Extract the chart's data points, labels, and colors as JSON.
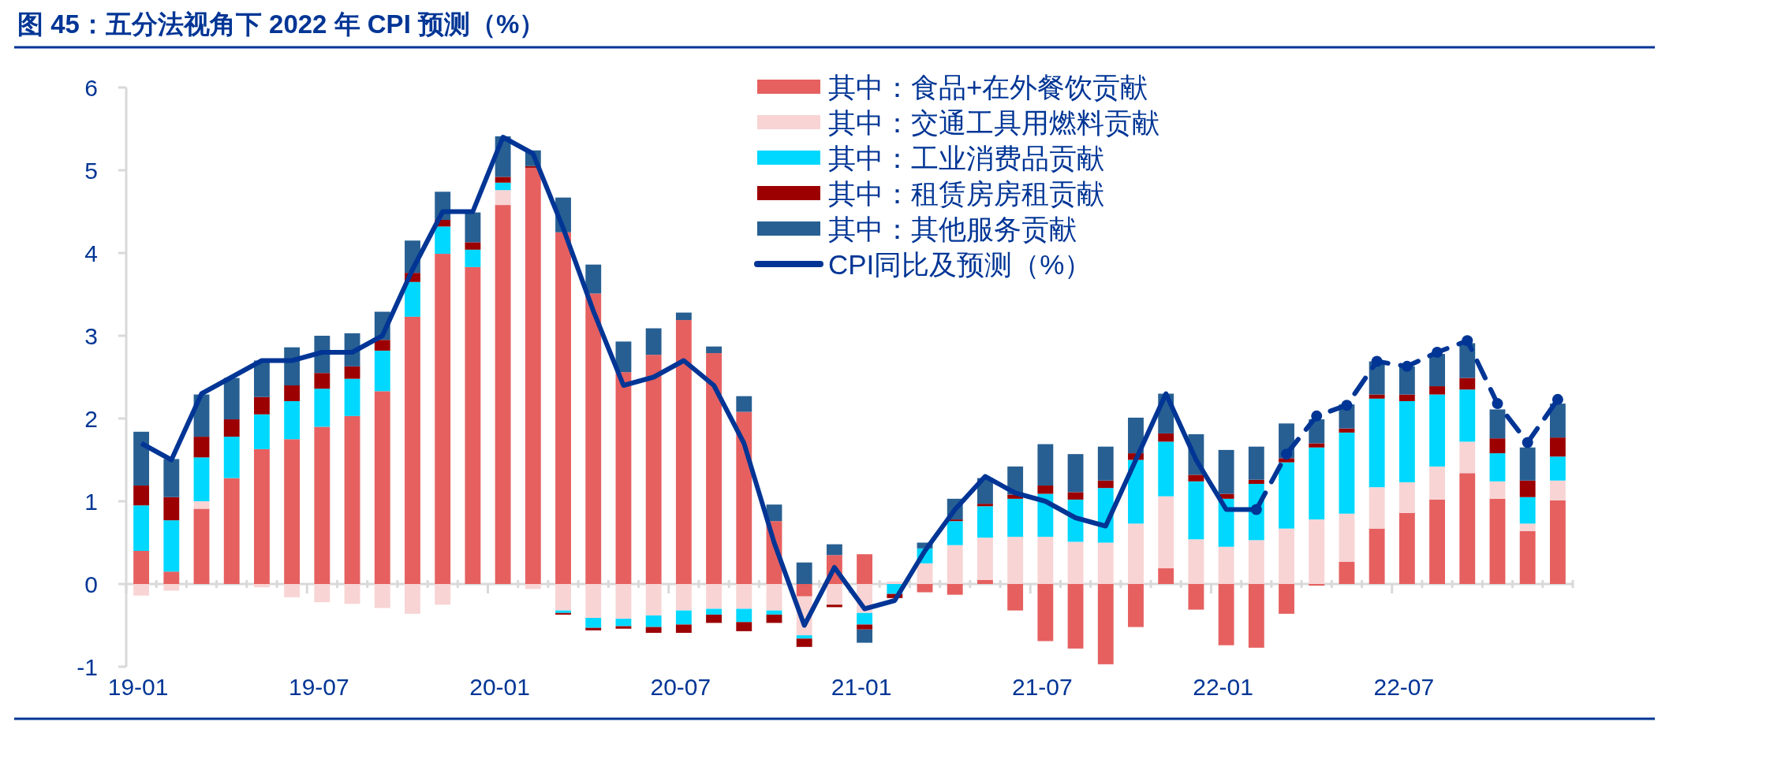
{
  "chart_data": {
    "type": "bar",
    "stacked": true,
    "title": "图 45：五分法视角下 2022 年 CPI 预测（%）",
    "legend": "top",
    "ylim": [
      -1,
      6
    ],
    "yticks": [
      -1,
      0,
      1,
      2,
      3,
      4,
      5,
      6
    ],
    "categories": [
      "19-01",
      null,
      null,
      null,
      null,
      null,
      "19-07",
      null,
      null,
      null,
      null,
      null,
      "20-01",
      null,
      null,
      null,
      null,
      null,
      "20-07",
      null,
      null,
      null,
      null,
      null,
      "21-01",
      null,
      null,
      null,
      null,
      null,
      "21-07",
      null,
      null,
      null,
      null,
      null,
      "22-01",
      null,
      null,
      null,
      null,
      null,
      "22-07",
      null,
      null,
      null,
      null,
      null
    ],
    "series": [
      {
        "name": "其中：食品+在外餐饮贡献",
        "color": "#e66060",
        "values": [
          0.4,
          0.15,
          0.91,
          1.28,
          1.63,
          1.75,
          1.9,
          2.03,
          2.33,
          3.23,
          3.99,
          3.83,
          4.58,
          5.03,
          4.25,
          3.51,
          2.56,
          2.77,
          3.19,
          2.79,
          2.08,
          0.76,
          -0.15,
          0.35,
          0.36,
          0,
          -0.1,
          -0.13,
          0.05,
          -0.32,
          -0.69,
          -0.78,
          -0.97,
          -0.52,
          0.19,
          -0.31,
          -0.74,
          -0.77,
          -0.36,
          -0.02,
          0.27,
          0.67,
          0.86,
          1.02,
          1.34,
          1.03,
          0.64,
          1.01
        ]
      },
      {
        "name": "其中：交通工具用燃料贡献",
        "color": "#f8d4d4",
        "values": [
          -0.14,
          -0.08,
          0.09,
          0,
          -0.04,
          -0.16,
          -0.22,
          -0.24,
          -0.29,
          -0.36,
          -0.25,
          0,
          0.18,
          -0.06,
          -0.32,
          -0.41,
          -0.42,
          -0.38,
          -0.32,
          -0.3,
          -0.3,
          -0.32,
          -0.47,
          -0.25,
          -0.35,
          0.03,
          0.25,
          0.47,
          0.51,
          0.57,
          0.57,
          0.51,
          0.5,
          0.73,
          0.87,
          0.54,
          0.45,
          0.53,
          0.67,
          0.78,
          0.58,
          0.5,
          0.37,
          0.4,
          0.38,
          0.21,
          0.09,
          0.24
        ]
      },
      {
        "name": "其中：工业消费品贡献",
        "color": "#00d8ff",
        "values": [
          0.55,
          0.62,
          0.53,
          0.5,
          0.42,
          0.46,
          0.46,
          0.45,
          0.49,
          0.42,
          0.33,
          0.21,
          0.09,
          0,
          -0.03,
          -0.12,
          -0.09,
          -0.14,
          -0.17,
          -0.07,
          -0.16,
          -0.05,
          -0.04,
          0,
          -0.14,
          -0.12,
          0.18,
          0.29,
          0.38,
          0.46,
          0.52,
          0.51,
          0.66,
          0.77,
          0.66,
          0.7,
          0.58,
          0.68,
          0.8,
          0.87,
          0.98,
          1.07,
          0.98,
          0.87,
          0.63,
          0.34,
          0.32,
          0.29
        ]
      },
      {
        "name": "其中：租赁房房租贡献",
        "color": "#9c0000",
        "values": [
          0.24,
          0.28,
          0.25,
          0.21,
          0.21,
          0.19,
          0.19,
          0.15,
          0.13,
          0.11,
          0.08,
          0.09,
          0.07,
          0.02,
          -0.02,
          -0.03,
          -0.03,
          -0.07,
          -0.1,
          -0.1,
          -0.11,
          -0.1,
          -0.1,
          -0.03,
          -0.06,
          -0.05,
          0,
          0.02,
          0.03,
          0.05,
          0.1,
          0.09,
          0.09,
          0.08,
          0.1,
          0.08,
          0.06,
          0.05,
          0.05,
          0.05,
          0.05,
          0.05,
          0.08,
          0.1,
          0.14,
          0.18,
          0.2,
          0.23
        ]
      },
      {
        "name": "其中：其他服务贡献",
        "color": "#275f92",
        "values": [
          0.65,
          0.46,
          0.51,
          0.5,
          0.44,
          0.46,
          0.45,
          0.4,
          0.34,
          0.39,
          0.34,
          0.36,
          0.49,
          0.19,
          0.42,
          0.35,
          0.37,
          0.32,
          0.09,
          0.08,
          0.19,
          0.2,
          0.26,
          0.13,
          -0.16,
          0,
          0.07,
          0.25,
          0.31,
          0.34,
          0.5,
          0.46,
          0.41,
          0.43,
          0.48,
          0.49,
          0.53,
          0.4,
          0.42,
          0.29,
          0.29,
          0.4,
          0.34,
          0.39,
          0.42,
          0.35,
          0.4,
          0.41
        ]
      },
      {
        "name": "CPI同比及预测（%）",
        "type": "line",
        "color": "#003595",
        "line_style": "solid",
        "values": [
          1.7,
          1.5,
          2.3,
          2.5,
          2.7,
          2.7,
          2.8,
          2.8,
          3.0,
          3.8,
          4.5,
          4.5,
          5.4,
          5.2,
          4.3,
          3.3,
          2.4,
          2.5,
          2.7,
          2.4,
          1.7,
          0.5,
          -0.5,
          0.2,
          -0.3,
          -0.2,
          0.4,
          0.9,
          1.3,
          1.1,
          1.0,
          0.8,
          0.7,
          1.5,
          2.3,
          1.5,
          0.9,
          0.9,
          null,
          null,
          null,
          null,
          null,
          null,
          null,
          null,
          null,
          null
        ]
      },
      {
        "type": "line",
        "color": "#003595",
        "line_style": "dashed",
        "marker": "circle",
        "values": [
          null,
          null,
          null,
          null,
          null,
          null,
          null,
          null,
          null,
          null,
          null,
          null,
          null,
          null,
          null,
          null,
          null,
          null,
          null,
          null,
          null,
          null,
          null,
          null,
          null,
          null,
          null,
          null,
          null,
          null,
          null,
          null,
          null,
          null,
          null,
          null,
          null,
          0.9,
          1.57,
          2.03,
          2.16,
          2.69,
          2.63,
          2.8,
          2.94,
          2.18,
          1.71,
          2.23
        ]
      }
    ]
  }
}
